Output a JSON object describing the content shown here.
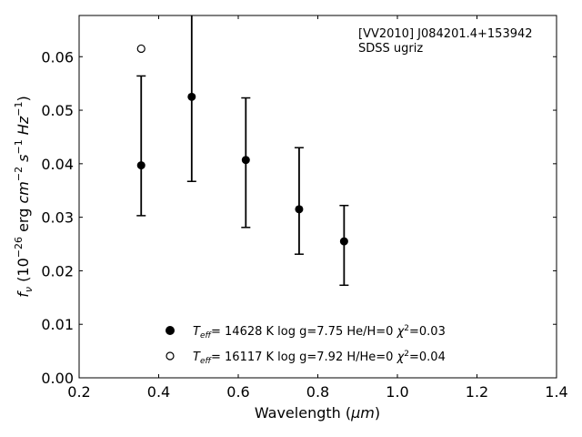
{
  "chart_data": {
    "type": "scatter",
    "title_lines": [
      "[VV2010] J084201.4+153942",
      "SDSS ugriz"
    ],
    "xlabel": "Wavelength (",
    "xlabel_unit": "μm",
    "xlabel_end": ")",
    "ylabel": {
      "f": "f",
      "nu": "ν",
      "open": " (10",
      "exp1": "−26",
      "erg": " erg ",
      "cm": "cm",
      "exp2": "−2",
      "s": " s",
      "exp3": "−1",
      "hz": " Hz",
      "exp4": "−1",
      "close": ")"
    },
    "xlim": [
      0.2,
      1.4
    ],
    "ylim": [
      0.0,
      0.0677
    ],
    "xticks": [
      0.2,
      0.4,
      0.6,
      0.8,
      1.0,
      1.2,
      1.4
    ],
    "xtick_labels": [
      "0.2",
      "0.4",
      "0.6",
      "0.8",
      "1.0",
      "1.2",
      "1.4"
    ],
    "yticks": [
      0.0,
      0.01,
      0.02,
      0.03,
      0.04,
      0.05,
      0.06
    ],
    "ytick_labels": [
      "0.00",
      "0.01",
      "0.02",
      "0.03",
      "0.04",
      "0.05",
      "0.06"
    ],
    "grid": false,
    "observed": {
      "x": [
        0.356,
        0.483,
        0.619,
        0.753,
        0.866
      ],
      "y": [
        0.0397,
        0.0525,
        0.0407,
        0.0315,
        0.0255
      ],
      "err_low": [
        0.0303,
        0.0367,
        0.0281,
        0.0231,
        0.0173
      ],
      "err_high": [
        0.0564,
        0.07,
        0.0523,
        0.043,
        0.0322
      ]
    },
    "model_open": {
      "x": [
        0.356
      ],
      "y": [
        0.0615
      ]
    },
    "legend_position": "bottom-center",
    "legend": [
      {
        "marker": "filled",
        "T": "T",
        "sub": "eff",
        "mid": "= 14628 K  log g=7.75  He/H=0  ",
        "chi": "χ",
        "sup": "2",
        "end": "=0.03"
      },
      {
        "marker": "open",
        "T": "T",
        "sub": "eff",
        "mid": "= 16117 K  log g=7.92  H/He=0  ",
        "chi": "χ",
        "sup": "2",
        "end": "=0.04"
      }
    ]
  }
}
